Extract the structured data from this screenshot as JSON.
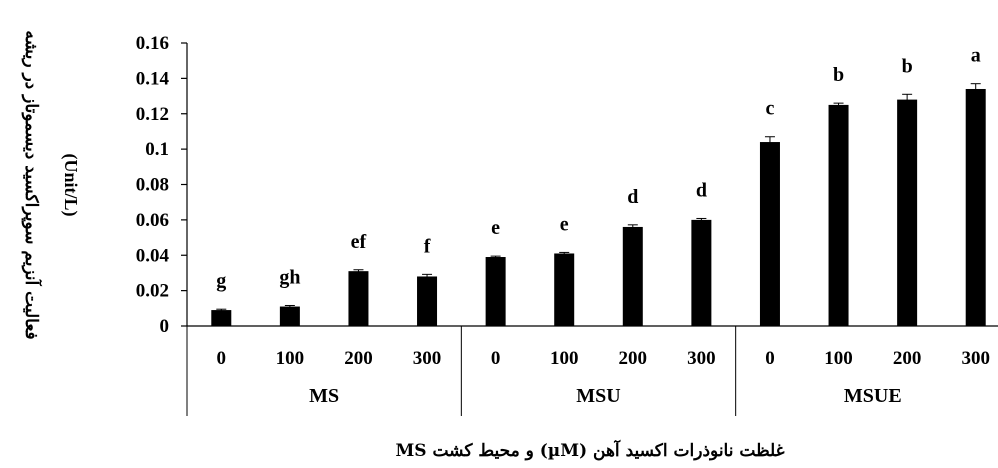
{
  "chart_data": {
    "type": "bar",
    "ylabel": "فعالیت آنزیم سوپراکسید دیسموتاز در ریشه",
    "ylabel_unit": "(Unit/L)",
    "xlabel": "غلظت نانوذرات اکسید آهن (µM) و محیط کشت MS",
    "ylim": [
      0,
      0.16
    ],
    "yticks": [
      "0",
      "0.02",
      "0.04",
      "0.06",
      "0.08",
      "0.1",
      "0.12",
      "0.14",
      "0.16"
    ],
    "groups": [
      {
        "name": "MS",
        "categories": [
          "0",
          "100",
          "200",
          "300"
        ]
      },
      {
        "name": "MSU",
        "categories": [
          "0",
          "100",
          "200",
          "300"
        ]
      },
      {
        "name": "MSUE",
        "categories": [
          "0",
          "100",
          "200",
          "300"
        ]
      }
    ],
    "values": [
      0.009,
      0.011,
      0.031,
      0.028,
      0.039,
      0.041,
      0.056,
      0.06,
      0.104,
      0.125,
      0.128,
      0.134
    ],
    "errors": [
      0.0005,
      0.0006,
      0.0008,
      0.0012,
      0.0005,
      0.0006,
      0.0012,
      0.0008,
      0.003,
      0.001,
      0.003,
      0.003
    ],
    "labels": [
      "g",
      "gh",
      "ef",
      "f",
      "e",
      "e",
      "d",
      "d",
      "c",
      "b",
      "b",
      "a"
    ],
    "bar_color": "#000000",
    "grid": false
  }
}
